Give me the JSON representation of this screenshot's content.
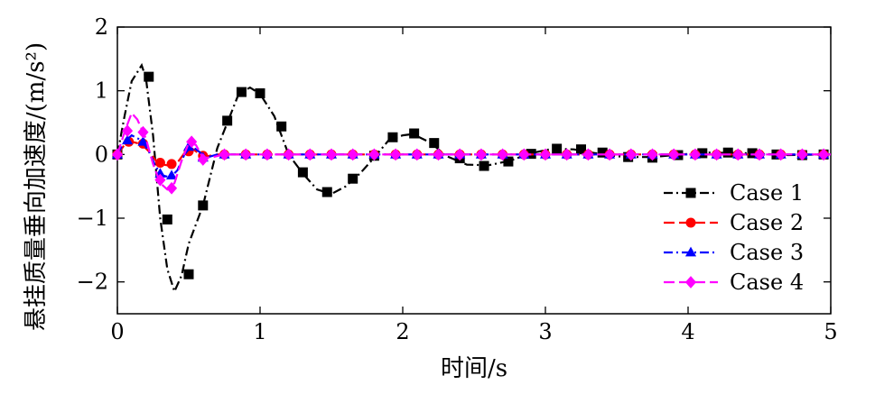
{
  "chart_data": {
    "type": "line",
    "xlabel": "时间/s",
    "ylabel": "悬挂质量垂向加速度/(m/s²)",
    "xlim": [
      0,
      5
    ],
    "ylim": [
      -2.5,
      2
    ],
    "xticks": [
      0,
      1,
      2,
      3,
      4,
      5
    ],
    "yticks": [
      -2,
      -1,
      0,
      1,
      2
    ],
    "xtick_labels": [
      "0",
      "1",
      "2",
      "3",
      "4",
      "5"
    ],
    "ytick_labels": [
      "−2",
      "−1",
      "0",
      "1",
      "2"
    ],
    "grid": false,
    "legend_position": "lower-right",
    "series": [
      {
        "name": "Case 1",
        "color": "#000000",
        "marker": "square",
        "dash": "10,4,2,4",
        "curve": [
          [
            0,
            0
          ],
          [
            0.05,
            0.6
          ],
          [
            0.1,
            1.15
          ],
          [
            0.17,
            1.4
          ],
          [
            0.2,
            1.2
          ],
          [
            0.25,
            0.3
          ],
          [
            0.3,
            -1.0
          ],
          [
            0.35,
            -1.8
          ],
          [
            0.4,
            -2.15
          ],
          [
            0.45,
            -1.9
          ],
          [
            0.5,
            -1.4
          ],
          [
            0.6,
            -0.8
          ],
          [
            0.7,
            0.1
          ],
          [
            0.78,
            0.55
          ],
          [
            0.85,
            0.95
          ],
          [
            0.93,
            1.05
          ],
          [
            1.0,
            0.95
          ],
          [
            1.1,
            0.6
          ],
          [
            1.2,
            0.0
          ],
          [
            1.3,
            -0.3
          ],
          [
            1.4,
            -0.55
          ],
          [
            1.5,
            -0.62
          ],
          [
            1.6,
            -0.5
          ],
          [
            1.7,
            -0.3
          ],
          [
            1.8,
            -0.05
          ],
          [
            1.9,
            0.22
          ],
          [
            2.0,
            0.3
          ],
          [
            2.07,
            0.32
          ],
          [
            2.2,
            0.18
          ],
          [
            2.3,
            -0.02
          ],
          [
            2.45,
            -0.16
          ],
          [
            2.6,
            -0.17
          ],
          [
            2.75,
            -0.1
          ],
          [
            2.9,
            0.02
          ],
          [
            3.05,
            0.09
          ],
          [
            3.2,
            0.08
          ],
          [
            3.35,
            0.02
          ],
          [
            3.55,
            -0.04
          ],
          [
            3.75,
            -0.04
          ],
          [
            3.95,
            0.0
          ],
          [
            4.15,
            0.03
          ],
          [
            4.4,
            0.02
          ],
          [
            4.7,
            -0.01
          ],
          [
            5.0,
            0.0
          ]
        ],
        "markers": [
          [
            0,
            0
          ],
          [
            0.22,
            1.22
          ],
          [
            0.35,
            -1.02
          ],
          [
            0.5,
            -1.88
          ],
          [
            0.6,
            -0.8
          ],
          [
            0.77,
            0.53
          ],
          [
            0.87,
            0.98
          ],
          [
            1.0,
            0.96
          ],
          [
            1.15,
            0.44
          ],
          [
            1.3,
            -0.28
          ],
          [
            1.47,
            -0.59
          ],
          [
            1.65,
            -0.38
          ],
          [
            1.8,
            -0.02
          ],
          [
            1.93,
            0.27
          ],
          [
            2.08,
            0.33
          ],
          [
            2.22,
            0.18
          ],
          [
            2.4,
            -0.06
          ],
          [
            2.57,
            -0.18
          ],
          [
            2.74,
            -0.11
          ],
          [
            2.9,
            0.01
          ],
          [
            3.08,
            0.09
          ],
          [
            3.25,
            0.08
          ],
          [
            3.4,
            0.03
          ],
          [
            3.58,
            -0.04
          ],
          [
            3.75,
            -0.05
          ],
          [
            3.93,
            -0.01
          ],
          [
            4.1,
            0.02
          ],
          [
            4.28,
            0.03
          ],
          [
            4.45,
            0.02
          ],
          [
            4.62,
            0.0
          ],
          [
            4.8,
            -0.01
          ],
          [
            4.95,
            0.0
          ]
        ]
      },
      {
        "name": "Case 2",
        "color": "#ff0000",
        "marker": "circle",
        "dash": "12,5",
        "curve": [
          [
            0,
            0
          ],
          [
            0.05,
            0.15
          ],
          [
            0.1,
            0.2
          ],
          [
            0.17,
            0.16
          ],
          [
            0.22,
            0.05
          ],
          [
            0.27,
            -0.1
          ],
          [
            0.32,
            -0.16
          ],
          [
            0.38,
            -0.18
          ],
          [
            0.43,
            -0.1
          ],
          [
            0.48,
            0.05
          ],
          [
            0.52,
            0.1
          ],
          [
            0.58,
            0.0
          ],
          [
            0.62,
            -0.03
          ],
          [
            0.7,
            0.0
          ],
          [
            5.0,
            0.0
          ]
        ],
        "markers": [
          [
            0,
            0
          ],
          [
            0.08,
            0.2
          ],
          [
            0.18,
            0.17
          ],
          [
            0.3,
            -0.13
          ],
          [
            0.38,
            -0.15
          ],
          [
            0.5,
            0.05
          ],
          [
            0.6,
            -0.02
          ],
          [
            0.75,
            0.0
          ],
          [
            0.9,
            0.0
          ],
          [
            1.05,
            0.0
          ],
          [
            1.2,
            0.0
          ],
          [
            1.35,
            0.0
          ],
          [
            1.5,
            0.0
          ],
          [
            1.65,
            0.0
          ],
          [
            1.8,
            0.0
          ],
          [
            1.95,
            0.0
          ],
          [
            2.1,
            0.0
          ],
          [
            2.25,
            0.0
          ],
          [
            2.4,
            0.0
          ],
          [
            2.55,
            0.0
          ],
          [
            2.7,
            0.0
          ],
          [
            2.85,
            0.0
          ],
          [
            3.0,
            0.0
          ],
          [
            3.15,
            0.0
          ],
          [
            3.3,
            0.0
          ],
          [
            3.45,
            0.0
          ],
          [
            3.6,
            0.0
          ],
          [
            3.75,
            0.0
          ],
          [
            3.9,
            0.0
          ],
          [
            4.05,
            0.0
          ],
          [
            4.2,
            0.0
          ],
          [
            4.35,
            0.0
          ],
          [
            4.5,
            0.0
          ],
          [
            4.65,
            0.0
          ],
          [
            4.8,
            0.0
          ],
          [
            4.95,
            0.0
          ]
        ]
      },
      {
        "name": "Case 3",
        "color": "#0000ff",
        "marker": "triangle",
        "dash": "10,4,2,4",
        "curve": [
          [
            0,
            0
          ],
          [
            0.05,
            0.2
          ],
          [
            0.1,
            0.3
          ],
          [
            0.17,
            0.22
          ],
          [
            0.22,
            0.05
          ],
          [
            0.27,
            -0.2
          ],
          [
            0.32,
            -0.33
          ],
          [
            0.37,
            -0.36
          ],
          [
            0.42,
            -0.25
          ],
          [
            0.47,
            0.0
          ],
          [
            0.52,
            0.13
          ],
          [
            0.57,
            0.05
          ],
          [
            0.62,
            -0.05
          ],
          [
            0.7,
            0.0
          ],
          [
            5.0,
            0.0
          ]
        ],
        "markers": [
          [
            0,
            0
          ],
          [
            0.07,
            0.22
          ],
          [
            0.18,
            0.2
          ],
          [
            0.3,
            -0.3
          ],
          [
            0.38,
            -0.33
          ],
          [
            0.5,
            0.12
          ],
          [
            0.6,
            -0.05
          ],
          [
            0.75,
            0.0
          ],
          [
            0.9,
            0.0
          ],
          [
            1.05,
            0.0
          ],
          [
            1.2,
            0.0
          ],
          [
            1.35,
            0.0
          ],
          [
            1.5,
            0.0
          ],
          [
            1.65,
            0.0
          ],
          [
            1.8,
            0.0
          ],
          [
            1.95,
            0.0
          ],
          [
            2.1,
            0.0
          ],
          [
            2.25,
            0.0
          ],
          [
            2.4,
            0.0
          ],
          [
            2.55,
            0.0
          ],
          [
            2.7,
            0.0
          ],
          [
            2.85,
            0.0
          ],
          [
            3.0,
            0.0
          ],
          [
            3.15,
            0.0
          ],
          [
            3.3,
            0.0
          ],
          [
            3.45,
            0.0
          ],
          [
            3.6,
            0.0
          ],
          [
            3.75,
            0.0
          ],
          [
            3.9,
            0.0
          ],
          [
            4.05,
            0.0
          ],
          [
            4.2,
            0.0
          ],
          [
            4.35,
            0.0
          ],
          [
            4.5,
            0.0
          ],
          [
            4.65,
            0.0
          ],
          [
            4.8,
            0.0
          ],
          [
            4.95,
            0.0
          ]
        ]
      },
      {
        "name": "Case 4",
        "color": "#ff00ff",
        "marker": "diamond",
        "dash": "12,5",
        "curve": [
          [
            0,
            0
          ],
          [
            0.05,
            0.35
          ],
          [
            0.1,
            0.65
          ],
          [
            0.14,
            0.55
          ],
          [
            0.2,
            0.25
          ],
          [
            0.25,
            -0.15
          ],
          [
            0.3,
            -0.45
          ],
          [
            0.35,
            -0.55
          ],
          [
            0.4,
            -0.45
          ],
          [
            0.45,
            -0.1
          ],
          [
            0.5,
            0.18
          ],
          [
            0.55,
            0.15
          ],
          [
            0.6,
            -0.05
          ],
          [
            0.65,
            -0.05
          ],
          [
            0.75,
            0.0
          ],
          [
            5.0,
            0.0
          ]
        ],
        "markers": [
          [
            0,
            0
          ],
          [
            0.07,
            0.37
          ],
          [
            0.18,
            0.35
          ],
          [
            0.3,
            -0.4
          ],
          [
            0.38,
            -0.53
          ],
          [
            0.52,
            0.2
          ],
          [
            0.6,
            -0.08
          ],
          [
            0.75,
            0.0
          ],
          [
            0.9,
            0.0
          ],
          [
            1.05,
            0.0
          ],
          [
            1.2,
            0.0
          ],
          [
            1.35,
            0.0
          ],
          [
            1.5,
            0.0
          ],
          [
            1.65,
            0.0
          ],
          [
            1.8,
            0.0
          ],
          [
            1.95,
            0.0
          ],
          [
            2.1,
            0.0
          ],
          [
            2.25,
            0.0
          ],
          [
            2.4,
            0.0
          ],
          [
            2.55,
            0.0
          ],
          [
            2.7,
            0.0
          ],
          [
            2.85,
            0.0
          ],
          [
            3.0,
            0.0
          ],
          [
            3.15,
            0.0
          ],
          [
            3.3,
            0.0
          ],
          [
            3.45,
            0.0
          ],
          [
            3.6,
            0.0
          ],
          [
            3.75,
            0.0
          ],
          [
            3.9,
            0.0
          ],
          [
            4.05,
            0.0
          ],
          [
            4.2,
            0.0
          ],
          [
            4.35,
            0.0
          ],
          [
            4.5,
            0.0
          ],
          [
            4.65,
            0.0
          ],
          [
            4.8,
            0.0
          ],
          [
            4.95,
            0.0
          ]
        ]
      }
    ]
  }
}
